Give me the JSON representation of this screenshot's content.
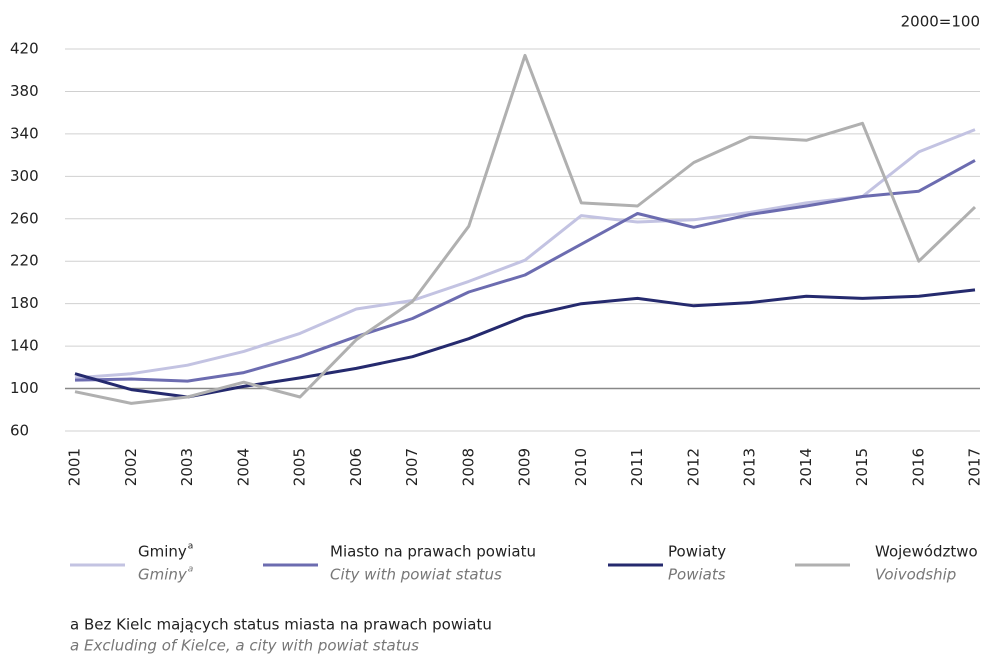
{
  "chart_data": {
    "type": "line",
    "annotation": "2000=100",
    "categories": [
      "2001",
      "2002",
      "2003",
      "2004",
      "2005",
      "2006",
      "2007",
      "2008",
      "2009",
      "2010",
      "2011",
      "2012",
      "2013",
      "2014",
      "2015",
      "2016",
      "2017"
    ],
    "series": [
      {
        "name": "Gminy",
        "name_en": "Gminy",
        "marker": "a",
        "color": "#c3c3e2",
        "values": [
          110,
          114,
          122,
          135,
          152,
          175,
          183,
          201,
          221,
          263,
          257,
          259,
          266,
          275,
          281,
          323,
          344
        ]
      },
      {
        "name": "Miasto na prawach powiatu",
        "name_en": "City with powiat status",
        "color": "#6c6cb0",
        "values": [
          108,
          109,
          107,
          115,
          130,
          149,
          166,
          191,
          207,
          236,
          265,
          252,
          264,
          272,
          281,
          286,
          315
        ]
      },
      {
        "name": "Powiaty",
        "name_en": "Powiats",
        "color": "#252a6e",
        "values": [
          114,
          99,
          92,
          102,
          110,
          119,
          130,
          147,
          168,
          180,
          185,
          178,
          181,
          187,
          185,
          187,
          193
        ]
      },
      {
        "name": "Województwo",
        "name_en": "Voivodship",
        "color": "#b0b0b0",
        "values": [
          97,
          86,
          92,
          106,
          92,
          146,
          182,
          253,
          414,
          275,
          272,
          313,
          337,
          334,
          350,
          220,
          271
        ]
      }
    ],
    "ylim": [
      60,
      420
    ],
    "yticks": [
      60,
      100,
      140,
      180,
      220,
      260,
      300,
      340,
      380,
      420
    ],
    "reference_line": 100,
    "grid": true,
    "footnotes": [
      "a Bez Kielc mających status miasta na prawach powiatu",
      "a Excluding of Kielce, a city with powiat status"
    ]
  }
}
